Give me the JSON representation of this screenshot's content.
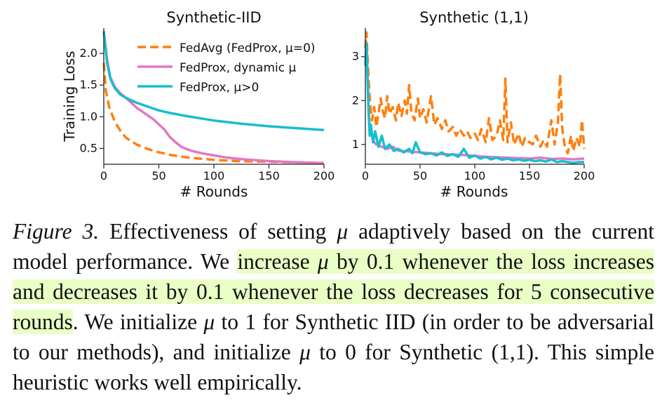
{
  "colors": {
    "fedavg": "#ff7f0e",
    "fedprox_dynamic": "#e377c2",
    "fedprox_mu": "#17becf",
    "highlight": "#eaffc6"
  },
  "legend": {
    "fedavg": "FedAvg (FedProx, μ=0)",
    "dynamic": "FedProx, dynamic μ",
    "mu_pos": "FedProx, μ>0"
  },
  "chart_data": [
    {
      "type": "line",
      "title": "Synthetic-IID",
      "xlabel": "# Rounds",
      "ylabel": "Training Loss",
      "xlim": [
        0,
        200
      ],
      "ylim": [
        0.25,
        2.4
      ],
      "xticks": [
        0,
        50,
        100,
        150,
        200
      ],
      "yticks": [
        0.5,
        1.0,
        1.5,
        2.0
      ],
      "ytick_labels": [
        "0.5",
        "1.0",
        "1.5",
        "2.0"
      ],
      "legend_position": "top-right",
      "series": [
        {
          "name": "FedAvg (FedProx, μ=0)",
          "color": "#ff7f0e",
          "style": "dashed",
          "x": [
            0,
            2,
            5,
            10,
            15,
            20,
            30,
            40,
            50,
            60,
            70,
            80,
            100,
            120,
            150,
            175,
            200
          ],
          "y": [
            1.85,
            1.4,
            1.15,
            0.92,
            0.78,
            0.67,
            0.56,
            0.49,
            0.44,
            0.4,
            0.37,
            0.35,
            0.32,
            0.3,
            0.29,
            0.28,
            0.27
          ]
        },
        {
          "name": "FedProx, dynamic μ",
          "color": "#e377c2",
          "style": "solid",
          "x": [
            0,
            3,
            6,
            10,
            15,
            20,
            25,
            30,
            35,
            40,
            45,
            50,
            55,
            60,
            65,
            70,
            75,
            80,
            90,
            100,
            110,
            125,
            150,
            175,
            200
          ],
          "y": [
            2.35,
            1.9,
            1.62,
            1.47,
            1.37,
            1.3,
            1.22,
            1.14,
            1.08,
            1.02,
            0.96,
            0.88,
            0.8,
            0.68,
            0.6,
            0.53,
            0.49,
            0.46,
            0.42,
            0.39,
            0.36,
            0.33,
            0.3,
            0.28,
            0.27
          ]
        },
        {
          "name": "FedProx, μ>0",
          "color": "#17becf",
          "style": "solid",
          "x": [
            0,
            3,
            6,
            10,
            15,
            20,
            30,
            40,
            50,
            60,
            75,
            100,
            125,
            150,
            175,
            200
          ],
          "y": [
            2.35,
            1.85,
            1.6,
            1.45,
            1.35,
            1.3,
            1.22,
            1.16,
            1.1,
            1.06,
            1.01,
            0.94,
            0.89,
            0.85,
            0.82,
            0.79
          ]
        }
      ]
    },
    {
      "type": "line",
      "title": "Synthetic (1,1)",
      "xlabel": "# Rounds",
      "ylabel": "",
      "xlim": [
        0,
        200
      ],
      "ylim": [
        0.55,
        3.65
      ],
      "xticks": [
        0,
        50,
        100,
        150,
        200
      ],
      "yticks": [
        1,
        2,
        3
      ],
      "ytick_labels": [
        "1",
        "2",
        "3"
      ],
      "series": [
        {
          "name": "FedAvg (FedProx, μ=0)",
          "color": "#ff7f0e",
          "style": "dashed",
          "x": [
            0,
            1,
            2,
            3,
            4,
            5,
            6,
            8,
            10,
            12,
            14,
            16,
            18,
            20,
            22,
            25,
            28,
            30,
            33,
            36,
            38,
            40,
            42,
            45,
            48,
            50,
            53,
            56,
            60,
            63,
            66,
            70,
            73,
            76,
            80,
            83,
            86,
            90,
            93,
            96,
            100,
            103,
            106,
            110,
            113,
            116,
            120,
            123,
            126,
            128,
            130,
            133,
            136,
            140,
            143,
            146,
            150,
            153,
            156,
            160,
            163,
            166,
            170,
            173,
            176,
            178,
            180,
            182,
            185,
            188,
            190,
            193,
            196,
            198,
            200
          ],
          "y": [
            3.2,
            3.55,
            3.0,
            2.5,
            2.05,
            1.8,
            1.55,
            1.85,
            1.4,
            1.7,
            2.05,
            1.75,
            1.6,
            2.1,
            1.7,
            1.85,
            1.55,
            1.95,
            1.65,
            2.0,
            1.7,
            2.35,
            1.75,
            1.55,
            2.05,
            1.6,
            1.8,
            1.5,
            2.1,
            1.45,
            1.6,
            1.35,
            1.55,
            1.3,
            1.4,
            1.2,
            1.35,
            1.2,
            1.3,
            1.15,
            1.25,
            1.1,
            1.35,
            1.05,
            1.6,
            1.1,
            1.2,
            1.55,
            1.1,
            2.5,
            1.05,
            1.5,
            1.0,
            1.25,
            0.95,
            1.15,
            1.05,
            1.0,
            1.2,
            0.95,
            1.1,
            0.95,
            1.55,
            1.0,
            1.5,
            2.6,
            1.35,
            1.0,
            0.8,
            1.2,
            0.85,
            1.15,
            0.95,
            1.55,
            0.9
          ]
        },
        {
          "name": "FedProx, dynamic μ",
          "color": "#e377c2",
          "style": "solid",
          "x": [
            0,
            1,
            2,
            3,
            4,
            6,
            8,
            10,
            15,
            20,
            25,
            30,
            40,
            50,
            60,
            70,
            80,
            90,
            100,
            110,
            120,
            130,
            140,
            150,
            160,
            170,
            180,
            190,
            200
          ],
          "y": [
            2.9,
            3.3,
            2.6,
            1.8,
            1.3,
            1.25,
            1.05,
            1.0,
            0.95,
            0.9,
            0.95,
            0.86,
            0.84,
            0.82,
            0.8,
            0.78,
            0.77,
            0.76,
            0.74,
            0.72,
            0.71,
            0.7,
            0.69,
            0.68,
            0.7,
            0.67,
            0.68,
            0.66,
            0.68
          ]
        },
        {
          "name": "FedProx, μ>0",
          "color": "#17becf",
          "style": "solid",
          "x": [
            0,
            1,
            2,
            3,
            4,
            5,
            7,
            9,
            12,
            15,
            18,
            22,
            26,
            30,
            35,
            40,
            43,
            46,
            50,
            55,
            60,
            65,
            70,
            75,
            80,
            85,
            90,
            95,
            100,
            105,
            110,
            115,
            120,
            125,
            130,
            135,
            140,
            145,
            150,
            155,
            160,
            165,
            170,
            175,
            180,
            185,
            190,
            195,
            200
          ],
          "y": [
            2.8,
            3.3,
            2.5,
            1.7,
            1.2,
            1.45,
            1.05,
            1.3,
            0.95,
            1.2,
            0.9,
            1.0,
            0.85,
            0.9,
            0.82,
            0.9,
            0.8,
            1.05,
            0.82,
            0.78,
            0.8,
            0.75,
            0.82,
            0.74,
            0.78,
            0.72,
            0.9,
            0.7,
            0.75,
            0.68,
            0.72,
            0.66,
            0.7,
            0.65,
            0.68,
            0.64,
            0.66,
            0.63,
            0.65,
            0.62,
            0.64,
            0.61,
            0.66,
            0.6,
            0.62,
            0.6,
            0.58,
            0.6,
            0.6
          ]
        }
      ]
    }
  ],
  "caption": {
    "label": "Figure 3.",
    "p1": " Effectiveness of setting ",
    "mu": "μ",
    "p2": " adaptively based on the current model performance.  We ",
    "hl1": "increase ",
    "hl_mu": "μ",
    "hl2": " by 0.1 whenever the loss increases and decreases it by 0.1 whenever the loss decreases for 5 consecutive rounds",
    "p3": ". We initialize ",
    "p4": " to 1 for Synthetic IID (in order to be adversarial to our methods), and initialize ",
    "p5": " to 0 for Synthetic (1,1). This simple heuristic works well empirically."
  }
}
